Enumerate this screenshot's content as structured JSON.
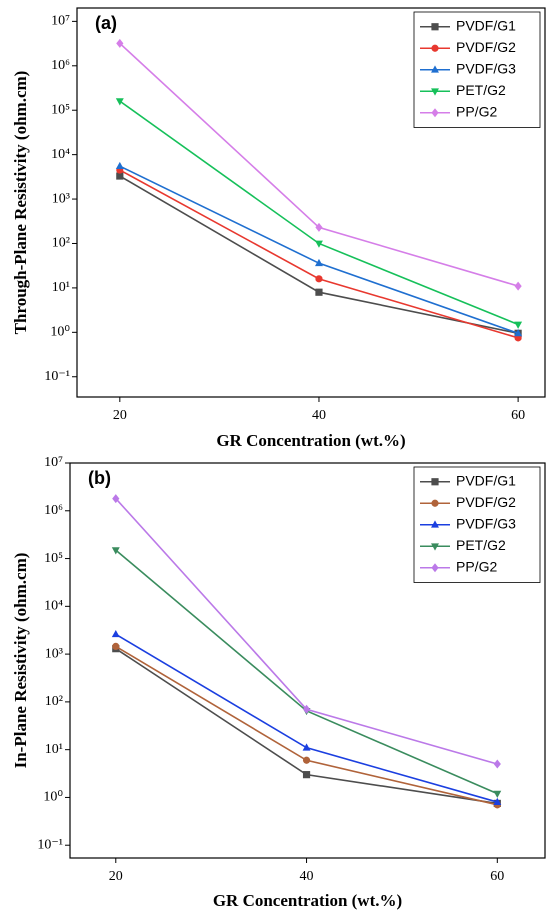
{
  "chart_data": [
    {
      "type": "line",
      "annotations": [
        "(a)"
      ],
      "xlabel": "GR Concentration (wt.%)",
      "ylabel": "Through-Plane Resistivity (ohm.cm)",
      "x": [
        20,
        40,
        60
      ],
      "xlim": [
        15.7,
        62.7
      ],
      "xticks": [
        20,
        40,
        60
      ],
      "ylog": true,
      "ylim": [
        0.035,
        20000000
      ],
      "yticks": [
        {
          "value": 0.1,
          "label": "10⁻¹"
        },
        {
          "value": 1,
          "label": "10⁰"
        },
        {
          "value": 10,
          "label": "10¹"
        },
        {
          "value": 100,
          "label": "10²"
        },
        {
          "value": 1000,
          "label": "10³"
        },
        {
          "value": 10000,
          "label": "10⁴"
        },
        {
          "value": 100000,
          "label": "10⁵"
        },
        {
          "value": 1000000,
          "label": "10⁶"
        },
        {
          "value": 10000000,
          "label": "10⁷"
        }
      ],
      "legend": "upper right",
      "series": [
        {
          "name": "PVDF/G1",
          "color": "#4d4d4d",
          "marker": "square",
          "values": [
            3300,
            8,
            0.95
          ]
        },
        {
          "name": "PVDF/G2",
          "color": "#e8382f",
          "marker": "circle",
          "values": [
            4500,
            16,
            0.75
          ]
        },
        {
          "name": "PVDF/G3",
          "color": "#1f6fd0",
          "marker": "triangle",
          "values": [
            5500,
            36,
            0.95
          ]
        },
        {
          "name": "PET/G2",
          "color": "#16c05a",
          "marker": "triangle-down",
          "values": [
            160000,
            100,
            1.5
          ]
        },
        {
          "name": "PP/G2",
          "color": "#d57ee8",
          "marker": "diamond",
          "values": [
            3200000,
            230,
            11
          ]
        }
      ]
    },
    {
      "type": "line",
      "annotations": [
        "(b)"
      ],
      "xlabel": "GR Concentration (wt.%)",
      "ylabel": "In-Plane Resistivity (ohm.cm)",
      "x": [
        20,
        40,
        60
      ],
      "xlim": [
        15.2,
        65
      ],
      "xticks": [
        20,
        40,
        60
      ],
      "ylog": true,
      "ylim": [
        0.054,
        10000000
      ],
      "yticks": [
        {
          "value": 0.1,
          "label": "10⁻¹"
        },
        {
          "value": 1,
          "label": "10⁰"
        },
        {
          "value": 10,
          "label": "10¹"
        },
        {
          "value": 100,
          "label": "10²"
        },
        {
          "value": 1000,
          "label": "10³"
        },
        {
          "value": 10000,
          "label": "10⁴"
        },
        {
          "value": 100000,
          "label": "10⁵"
        },
        {
          "value": 1000000,
          "label": "10⁶"
        },
        {
          "value": 10000000,
          "label": "10⁷"
        }
      ],
      "legend": "upper right",
      "series": [
        {
          "name": "PVDF/G1",
          "color": "#4d4d4d",
          "marker": "square",
          "values": [
            1300,
            3,
            0.75
          ]
        },
        {
          "name": "PVDF/G2",
          "color": "#b0633a",
          "marker": "circle",
          "values": [
            1450,
            6,
            0.7
          ]
        },
        {
          "name": "PVDF/G3",
          "color": "#1b3fe0",
          "marker": "triangle",
          "values": [
            2600,
            11,
            0.8
          ]
        },
        {
          "name": "PET/G2",
          "color": "#3a8c5e",
          "marker": "triangle-down",
          "values": [
            150000,
            65,
            1.2
          ]
        },
        {
          "name": "PP/G2",
          "color": "#bb79e8",
          "marker": "diamond",
          "values": [
            1800000,
            70,
            5
          ]
        }
      ]
    }
  ]
}
